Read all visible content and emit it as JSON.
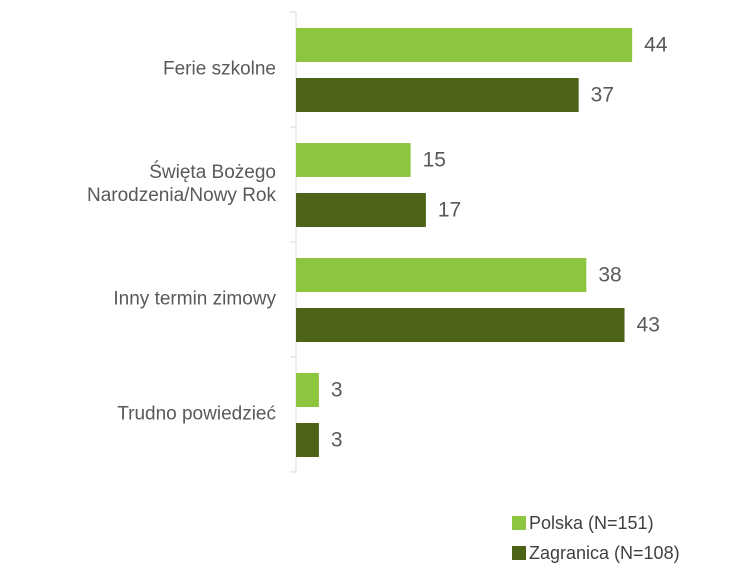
{
  "chart_data": {
    "type": "bar",
    "orientation": "horizontal",
    "categories": [
      "Ferie szkolne",
      "Święta Bożego\nNarodzenia/Nowy Rok",
      "Inny termin zimowy",
      "Trudno powiedzieć"
    ],
    "series": [
      {
        "name": "Polska (N=151)",
        "color": "#8cc63e",
        "values": [
          44,
          15,
          38,
          3
        ]
      },
      {
        "name": "Zagranica (N=108)",
        "color": "#4d6418",
        "values": [
          37,
          17,
          43,
          3
        ]
      }
    ],
    "legend": "bottom-right"
  }
}
